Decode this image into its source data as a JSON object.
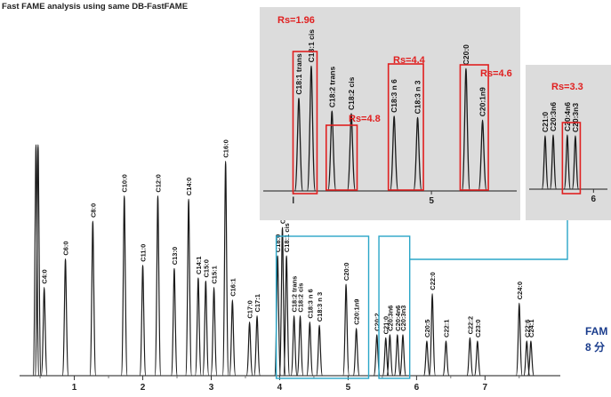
{
  "chart_data": {
    "type": "line",
    "title": "Fast FAME analysis using same DB-FastFAME",
    "xlabel": "",
    "ylabel": "",
    "xlim": [
      0.2,
      8.1
    ],
    "x_ticks": [
      "1",
      "2",
      "3",
      "4",
      "5",
      "6",
      "7"
    ],
    "peaks": [
      {
        "name": "",
        "x": 0.44,
        "h": 1.2
      },
      {
        "name": "",
        "x": 0.47,
        "h": 1.2
      },
      {
        "name": "C4:0",
        "x": 0.56,
        "h": 0.28
      },
      {
        "name": "C6:0",
        "x": 0.87,
        "h": 0.37
      },
      {
        "name": "C8:0",
        "x": 1.27,
        "h": 0.49
      },
      {
        "name": "C10:0",
        "x": 1.73,
        "h": 0.57
      },
      {
        "name": "C11:0",
        "x": 2.0,
        "h": 0.35
      },
      {
        "name": "C12:0",
        "x": 2.22,
        "h": 0.57
      },
      {
        "name": "C13:0",
        "x": 2.46,
        "h": 0.34
      },
      {
        "name": "C14:0",
        "x": 2.67,
        "h": 0.56
      },
      {
        "name": "C14:1",
        "x": 2.81,
        "h": 0.31
      },
      {
        "name": "C15:0",
        "x": 2.92,
        "h": 0.3
      },
      {
        "name": "C15:1",
        "x": 3.04,
        "h": 0.28
      },
      {
        "name": "C16:0",
        "x": 3.21,
        "h": 0.68
      },
      {
        "name": "C16:1",
        "x": 3.31,
        "h": 0.24
      },
      {
        "name": "C17:0",
        "x": 3.56,
        "h": 0.17
      },
      {
        "name": "C17:1",
        "x": 3.67,
        "h": 0.19
      },
      {
        "name": "C18:0",
        "x": 3.97,
        "h": 0.38
      },
      {
        "name": "C18:1 trans",
        "x": 4.04,
        "h": 0.47
      },
      {
        "name": "C18:1 cis",
        "x": 4.1,
        "h": 0.38
      },
      {
        "name": "C18:2 trans",
        "x": 4.21,
        "h": 0.19
      },
      {
        "name": "C18:2 cis",
        "x": 4.3,
        "h": 0.19
      },
      {
        "name": "C18:3 n 6",
        "x": 4.44,
        "h": 0.17
      },
      {
        "name": "C18:3 n 3",
        "x": 4.58,
        "h": 0.16
      },
      {
        "name": "C20:0",
        "x": 4.97,
        "h": 0.29
      },
      {
        "name": "C20:1n9",
        "x": 5.12,
        "h": 0.15
      },
      {
        "name": "C20:2",
        "x": 5.42,
        "h": 0.13
      },
      {
        "name": "C21:0",
        "x": 5.55,
        "h": 0.12
      },
      {
        "name": "C20:3n6",
        "x": 5.61,
        "h": 0.13
      },
      {
        "name": "C20:4n6",
        "x": 5.72,
        "h": 0.13
      },
      {
        "name": "C20:3n3",
        "x": 5.8,
        "h": 0.13
      },
      {
        "name": "C20:5",
        "x": 6.15,
        "h": 0.11
      },
      {
        "name": "C22:0",
        "x": 6.23,
        "h": 0.26
      },
      {
        "name": "C22:1",
        "x": 6.43,
        "h": 0.11
      },
      {
        "name": "C22:2",
        "x": 6.78,
        "h": 0.12
      },
      {
        "name": "C23:0",
        "x": 6.89,
        "h": 0.11
      },
      {
        "name": "C24:0",
        "x": 7.5,
        "h": 0.23
      },
      {
        "name": "C22:6",
        "x": 7.61,
        "h": 0.11
      },
      {
        "name": "C24:1",
        "x": 7.67,
        "h": 0.11
      }
    ],
    "insets": [
      {
        "xlim": [
          3.95,
          5.45
        ],
        "ticks": [
          {
            "x": 4.0,
            "label": "l"
          },
          {
            "x": 5.0,
            "label": "5"
          }
        ],
        "peaks": [
          {
            "name": "C18:1 trans",
            "x": 4.04,
            "h": 0.72
          },
          {
            "name": "C18:1 cis",
            "x": 4.13,
            "h": 0.97
          },
          {
            "name": "C18:2 trans",
            "x": 4.28,
            "h": 0.62
          },
          {
            "name": "C18:2 cis",
            "x": 4.42,
            "h": 0.6
          },
          {
            "name": "C18:3 n 6",
            "x": 4.73,
            "h": 0.58
          },
          {
            "name": "C18:3 n 3",
            "x": 4.9,
            "h": 0.57
          },
          {
            "name": "C20:0",
            "x": 5.25,
            "h": 0.95
          },
          {
            "name": "C20:1n9",
            "x": 5.37,
            "h": 0.55
          }
        ],
        "resolutions": [
          {
            "label": "Rs=1.96",
            "between": [
              "C18:1 trans",
              "C18:1 cis"
            ]
          },
          {
            "label": "Rs=4.8",
            "between": [
              "C18:2 trans",
              "C18:2 cis"
            ]
          },
          {
            "label": "Rs=4.4",
            "between": [
              "C18:3 n 6",
              "C18:3 n 3"
            ]
          },
          {
            "label": "Rs=4.6",
            "between": [
              "C20:0",
              "C20:1n9"
            ]
          }
        ]
      },
      {
        "xlim": [
          5.45,
          6.05
        ],
        "ticks": [
          {
            "x": 6.0,
            "label": "6"
          }
        ],
        "peaks": [
          {
            "name": "C21:0",
            "x": 5.52,
            "h": 0.6
          },
          {
            "name": "C20:3n6",
            "x": 5.6,
            "h": 0.61
          },
          {
            "name": "C20:4n6",
            "x": 5.74,
            "h": 0.61
          },
          {
            "name": "C20:3n3",
            "x": 5.82,
            "h": 0.6
          }
        ],
        "resolutions": [
          {
            "label": "Rs=3.3",
            "between": [
              "C20:4n6",
              "C20:3n3"
            ]
          }
        ]
      }
    ],
    "side_text": [
      "FAM",
      "8 分"
    ],
    "colors": {
      "trace": "#1a1a1a",
      "inset_bg": "#dcdcdc",
      "highlight": "#e02020",
      "zoom_link": "#2aa6c8",
      "side_text": "#1a3c8c"
    }
  }
}
